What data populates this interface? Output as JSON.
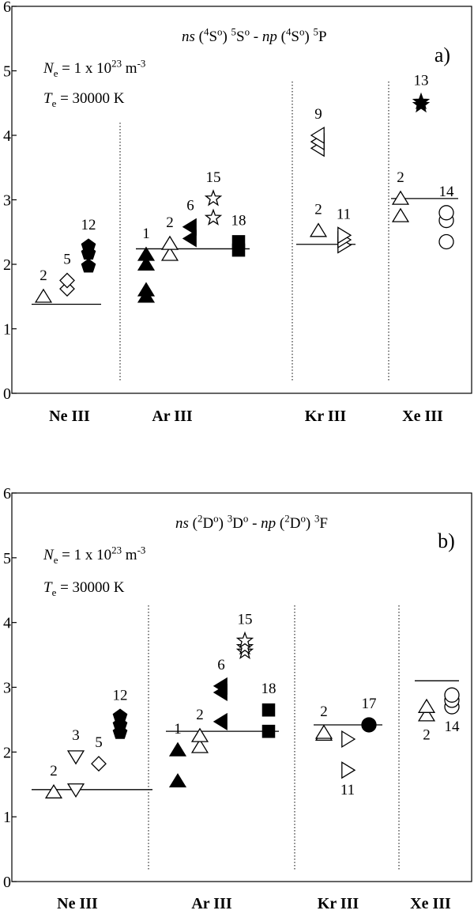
{
  "chart_data": [
    {
      "type": "scatter",
      "panel_label": "a)",
      "title": [
        {
          "text": "ns",
          "italic": true
        },
        {
          "text": " ("
        },
        {
          "text": "4",
          "sup": true
        },
        {
          "text": "S"
        },
        {
          "text": "o",
          "sup": true
        },
        {
          "text": ") "
        },
        {
          "text": "5",
          "sup": true
        },
        {
          "text": "S"
        },
        {
          "text": "o",
          "sup": true
        },
        {
          "text": " - "
        },
        {
          "text": "np",
          "italic": true
        },
        {
          "text": " ("
        },
        {
          "text": "4",
          "sup": true
        },
        {
          "text": "S"
        },
        {
          "text": "o",
          "sup": true
        },
        {
          "text": ") "
        },
        {
          "text": "5",
          "sup": true
        },
        {
          "text": "P"
        }
      ],
      "annotations": [
        [
          {
            "text": "N",
            "italic": true
          },
          {
            "text": "e",
            "sub": true
          },
          {
            "text": " = 1 x 10"
          },
          {
            "text": "23",
            "sup": true
          },
          {
            "text": " m"
          },
          {
            "text": "-3",
            "sup": true
          }
        ],
        [
          {
            "text": "T",
            "italic": true
          },
          {
            "text": "e",
            "sub": true
          },
          {
            "text": " = 30000 K"
          }
        ]
      ],
      "ylim": [
        0,
        6
      ],
      "yticks": [
        0,
        1,
        2,
        3,
        4,
        5,
        6
      ],
      "color": "#000000",
      "categories": [
        {
          "name": "Ne III",
          "average": 1.38,
          "series": [
            {
              "name": "2",
              "marker": "triangle-up",
              "filled": false,
              "values": [
                1.5
              ]
            },
            {
              "name": "5",
              "marker": "diamond",
              "filled": false,
              "values": [
                1.62,
                1.75
              ]
            },
            {
              "name": "12",
              "marker": "pentagon",
              "filled": true,
              "values": [
                1.97,
                2.17,
                2.28
              ]
            }
          ]
        },
        {
          "name": "Ar III",
          "average": 2.24,
          "series": [
            {
              "name": "1",
              "marker": "triangle-up",
              "filled": true,
              "values": [
                1.5,
                1.6,
                2.0,
                2.15
              ]
            },
            {
              "name": "2",
              "marker": "triangle-up",
              "filled": false,
              "values": [
                2.15,
                2.32
              ]
            },
            {
              "name": "6",
              "marker": "triangle-left",
              "filled": true,
              "values": [
                2.4,
                2.58
              ]
            },
            {
              "name": "15",
              "marker": "star",
              "filled": false,
              "values": [
                2.72,
                3.02
              ]
            },
            {
              "name": "18",
              "marker": "square",
              "filled": true,
              "values": [
                2.22,
                2.35
              ]
            }
          ]
        },
        {
          "name": "Kr III",
          "average": 2.31,
          "series": [
            {
              "name": "2",
              "marker": "triangle-up",
              "filled": false,
              "values": [
                2.52
              ]
            },
            {
              "name": "9",
              "marker": "triangle-left",
              "filled": false,
              "values": [
                3.8,
                3.9,
                4.0
              ]
            },
            {
              "name": "11",
              "marker": "triangle-right",
              "filled": false,
              "values": [
                2.3,
                2.38,
                2.45
              ]
            }
          ]
        },
        {
          "name": "Xe III",
          "average": 3.02,
          "series": [
            {
              "name": "2",
              "marker": "triangle-up",
              "filled": false,
              "values": [
                2.75,
                3.02
              ]
            },
            {
              "name": "13",
              "marker": "star",
              "filled": true,
              "values": [
                4.47,
                4.52
              ]
            },
            {
              "name": "14",
              "marker": "circle",
              "filled": false,
              "values": [
                2.35,
                2.68,
                2.8
              ]
            }
          ]
        }
      ]
    },
    {
      "type": "scatter",
      "panel_label": "b)",
      "title": [
        {
          "text": "ns",
          "italic": true
        },
        {
          "text": " ("
        },
        {
          "text": "2",
          "sup": true
        },
        {
          "text": "D"
        },
        {
          "text": "o",
          "sup": true
        },
        {
          "text": ") "
        },
        {
          "text": "3",
          "sup": true
        },
        {
          "text": "D"
        },
        {
          "text": "o",
          "sup": true
        },
        {
          "text": " - "
        },
        {
          "text": "np",
          "italic": true
        },
        {
          "text": " ("
        },
        {
          "text": "2",
          "sup": true
        },
        {
          "text": "D"
        },
        {
          "text": "o",
          "sup": true
        },
        {
          "text": ") "
        },
        {
          "text": "3",
          "sup": true
        },
        {
          "text": "F"
        }
      ],
      "annotations": [
        [
          {
            "text": "N",
            "italic": true
          },
          {
            "text": "e",
            "sub": true
          },
          {
            "text": " = 1 x 10"
          },
          {
            "text": "23",
            "sup": true
          },
          {
            "text": " m"
          },
          {
            "text": "-3",
            "sup": true
          }
        ],
        [
          {
            "text": "T",
            "italic": true
          },
          {
            "text": "e",
            "sub": true
          },
          {
            "text": " = 30000 K"
          }
        ]
      ],
      "ylim": [
        0,
        6
      ],
      "yticks": [
        0,
        1,
        2,
        3,
        4,
        5,
        6
      ],
      "color": "#000000",
      "categories": [
        {
          "name": "Ne III",
          "average": 1.42,
          "series": [
            {
              "name": "2",
              "marker": "triangle-up",
              "filled": false,
              "values": [
                1.38
              ]
            },
            {
              "name": "3",
              "marker": "triangle-down",
              "filled": false,
              "values": [
                1.42,
                1.93
              ]
            },
            {
              "name": "5",
              "marker": "diamond",
              "filled": false,
              "values": [
                1.82
              ]
            },
            {
              "name": "12",
              "marker": "pentagon",
              "filled": true,
              "values": [
                2.3,
                2.42,
                2.55
              ]
            }
          ]
        },
        {
          "name": "Ar III",
          "average": 2.32,
          "series": [
            {
              "name": "1",
              "marker": "triangle-up",
              "filled": true,
              "values": [
                1.55,
                2.03
              ]
            },
            {
              "name": "2",
              "marker": "triangle-up",
              "filled": false,
              "values": [
                2.08,
                2.25
              ]
            },
            {
              "name": "6",
              "marker": "triangle-left",
              "filled": true,
              "values": [
                2.47,
                2.92,
                3.02
              ]
            },
            {
              "name": "15",
              "marker": "star",
              "filled": false,
              "values": [
                3.55,
                3.62,
                3.72
              ]
            },
            {
              "name": "18",
              "marker": "square",
              "filled": true,
              "values": [
                2.32,
                2.65
              ]
            }
          ]
        },
        {
          "name": "Kr III",
          "average": 2.42,
          "series": [
            {
              "name": "2",
              "marker": "triangle-up",
              "filled": false,
              "values": [
                2.27,
                2.3
              ]
            },
            {
              "name": "11",
              "marker": "triangle-right",
              "filled": false,
              "values": [
                1.72,
                2.2
              ]
            },
            {
              "name": "17",
              "marker": "circle",
              "filled": true,
              "values": [
                2.42
              ]
            }
          ]
        },
        {
          "name": "Xe III",
          "average": 3.1,
          "series": [
            {
              "name": "2",
              "marker": "triangle-up",
              "filled": false,
              "values": [
                2.57,
                2.7
              ]
            },
            {
              "name": "14",
              "marker": "circle",
              "filled": false,
              "values": [
                2.7,
                2.8,
                2.88
              ]
            }
          ]
        }
      ]
    }
  ]
}
